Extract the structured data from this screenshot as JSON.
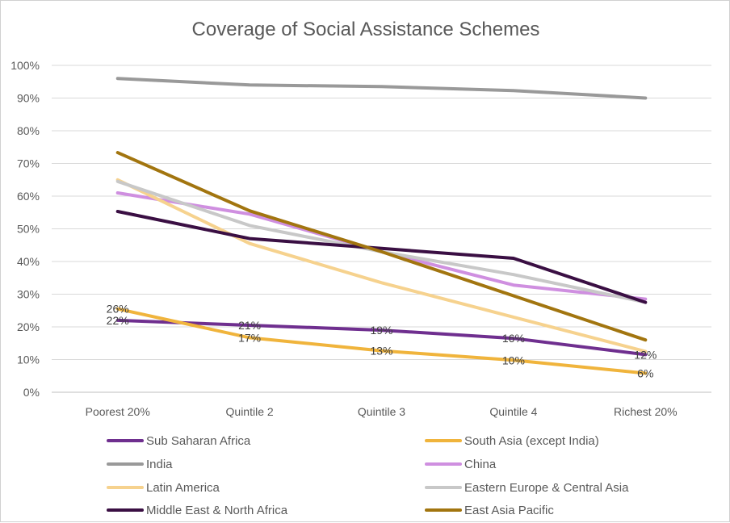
{
  "chart_data": {
    "type": "line",
    "title": "Coverage of Social Assistance Schemes",
    "xlabel": "",
    "ylabel": "",
    "categories": [
      "Poorest 20%",
      "Quintile 2",
      "Quintile 3",
      "Quintile 4",
      "Richest 20%"
    ],
    "y_ticks": [
      "0%",
      "10%",
      "20%",
      "30%",
      "40%",
      "50%",
      "60%",
      "70%",
      "80%",
      "90%",
      "100%"
    ],
    "ylim": [
      0,
      100
    ],
    "grid": "horizontal",
    "legend_position": "bottom",
    "series": [
      {
        "name": "Sub Saharan Africa",
        "color": "#6f2f8f",
        "values": [
          22,
          20.5,
          19,
          16.5,
          11.5
        ],
        "labels": [
          "22%",
          "21%",
          "19%",
          "16%",
          "12%"
        ]
      },
      {
        "name": "South Asia (except India)",
        "color": "#f0b43c",
        "values": [
          25.5,
          16.7,
          12.7,
          9.8,
          5.8
        ],
        "labels": [
          "26%",
          "17%",
          "13%",
          "10%",
          "6%"
        ]
      },
      {
        "name": "India",
        "color": "#999999",
        "values": [
          96,
          94,
          93.5,
          92.3,
          90
        ],
        "labels": []
      },
      {
        "name": "China",
        "color": "#cf8fe0",
        "values": [
          61,
          54.5,
          43,
          32.8,
          28.5
        ],
        "labels": []
      },
      {
        "name": "Latin America",
        "color": "#f6d28e",
        "values": [
          65,
          45.5,
          33.5,
          23,
          12.5
        ],
        "labels": []
      },
      {
        "name": "Eastern Europe & Central Asia",
        "color": "#c8c8c8",
        "values": [
          64.5,
          51,
          43,
          36,
          27.5
        ],
        "labels": []
      },
      {
        "name": "Middle East & North Africa",
        "color": "#3a0f43",
        "values": [
          55.3,
          47,
          44,
          41,
          27.5
        ],
        "labels": []
      },
      {
        "name": "East Asia Pacific",
        "color": "#a2750f",
        "values": [
          73.3,
          55.5,
          43,
          29.5,
          16
        ],
        "labels": []
      }
    ]
  }
}
